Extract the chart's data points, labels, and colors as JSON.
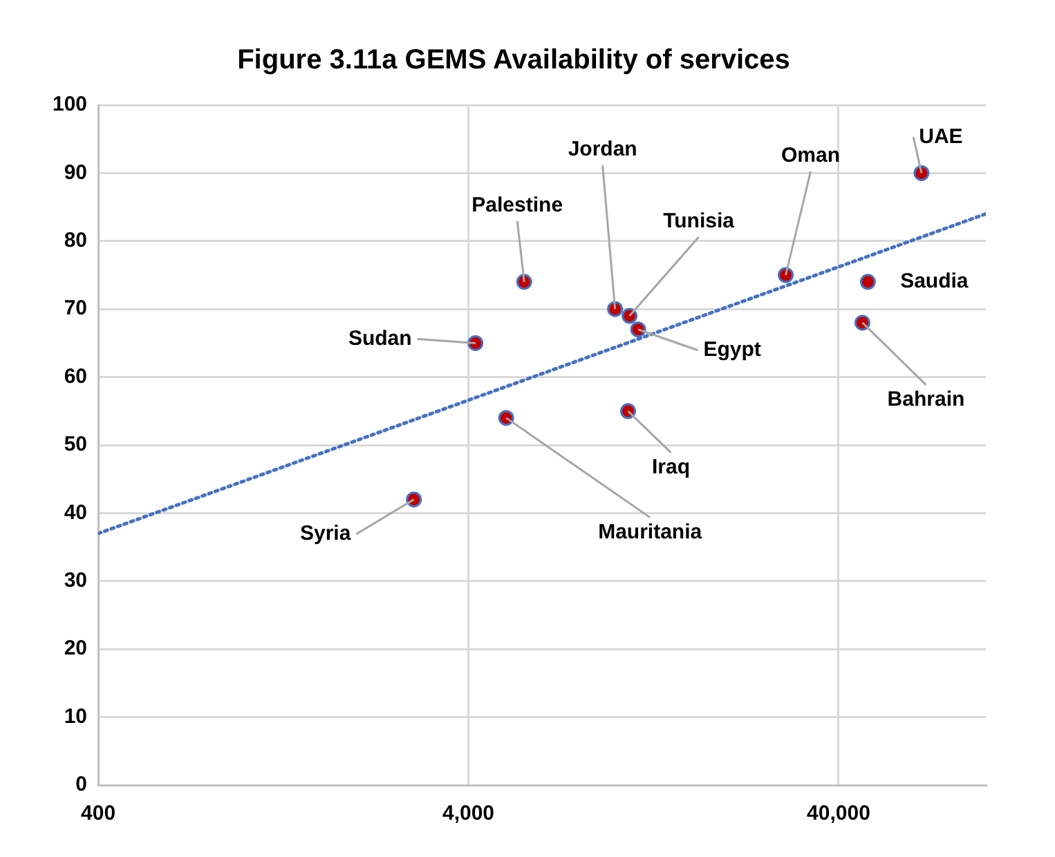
{
  "chart_data": {
    "type": "scatter",
    "title": "Figure 3.11a GEMS Availability of services",
    "series": [
      {
        "color": "#c00000",
        "x": [
          2850,
          4180,
          5060,
          5660,
          9960,
          10900,
          11500,
          10800,
          28800,
          46400,
          48000,
          67000
        ],
        "values": [
          42,
          65,
          54,
          74,
          70,
          69,
          67,
          55,
          75,
          68,
          74,
          90
        ]
      },
      {
        "type": "line",
        "color": "#4472c4",
        "line_style": "dotted",
        "marker": "none",
        "x": [
          400,
          100000
        ],
        "values": [
          37,
          84
        ]
      }
    ],
    "annotations": [
      {
        "text": "Syria",
        "x": 2850,
        "y": 42
      },
      {
        "text": "Sudan",
        "x": 4180,
        "y": 65
      },
      {
        "text": "Mauritania",
        "x": 5060,
        "y": 54
      },
      {
        "text": "Palestine",
        "x": 5660,
        "y": 74
      },
      {
        "text": "Jordan",
        "x": 9960,
        "y": 70
      },
      {
        "text": "Tunisia",
        "x": 10900,
        "y": 69
      },
      {
        "text": "Egypt",
        "x": 11500,
        "y": 67
      },
      {
        "text": "Iraq",
        "x": 10800,
        "y": 55
      },
      {
        "text": "Oman",
        "x": 28800,
        "y": 75
      },
      {
        "text": "Bahrain",
        "x": 46400,
        "y": 68
      },
      {
        "text": "Saudia",
        "x": 48000,
        "y": 74
      },
      {
        "text": "UAE",
        "x": 67000,
        "y": 90
      }
    ],
    "log": "x",
    "marker": "circle",
    "grid": true,
    "legend": false,
    "xlim": [
      400,
      100000
    ],
    "xticks": [
      400,
      {
        "value": 4000,
        "label": "4,000"
      },
      {
        "value": 40000,
        "label": "40,000"
      }
    ],
    "ylim": [
      0,
      100
    ],
    "yticks": [
      0,
      10,
      20,
      30,
      40,
      50,
      60,
      70,
      80,
      90,
      100
    ]
  }
}
